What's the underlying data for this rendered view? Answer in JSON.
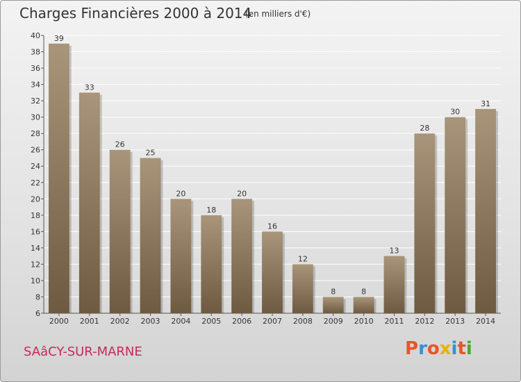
{
  "header": {
    "title": "Charges Financières 2000 à 2014",
    "subtitle": "(en milliers d'€)"
  },
  "footer": {
    "commune": "SAâCY-SUR-MARNE",
    "brand": [
      "P",
      "r",
      "o",
      "x",
      "i",
      "t",
      "i"
    ],
    "brand_colors": [
      "#e8552a",
      "#3a8fd0",
      "#e8552a",
      "#e8b400",
      "#3a8fd0",
      "#e8552a",
      "#4aa832"
    ]
  },
  "chart_data": {
    "type": "bar",
    "title": "Charges Financières 2000 à 2014",
    "subtitle": "(en milliers d'€)",
    "categories": [
      "2000",
      "2001",
      "2002",
      "2003",
      "2004",
      "2005",
      "2006",
      "2007",
      "2008",
      "2009",
      "2010",
      "2011",
      "2012",
      "2013",
      "2014"
    ],
    "values": [
      39,
      33,
      26,
      25,
      20,
      18,
      20,
      16,
      12,
      8,
      8,
      13,
      28,
      30,
      31
    ],
    "ylim": [
      6,
      40
    ],
    "yticks": [
      6,
      8,
      10,
      12,
      14,
      16,
      18,
      20,
      22,
      24,
      26,
      28,
      30,
      32,
      34,
      36,
      38,
      40
    ],
    "grid": true,
    "bar_color_top": "#a8957a",
    "bar_color_bottom": "#6e5a40",
    "xlabel": "",
    "ylabel": ""
  }
}
